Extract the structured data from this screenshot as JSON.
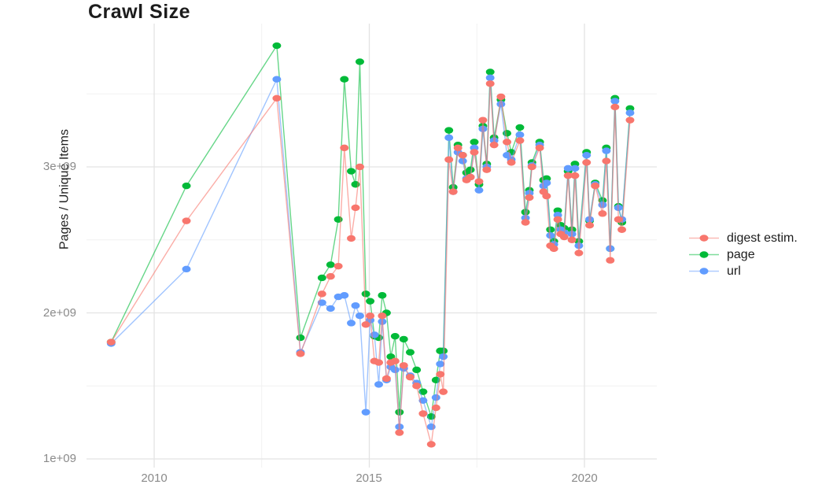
{
  "title": "Crawl Size",
  "axes": {
    "x": {
      "title": "",
      "tick_labels": [
        "2010",
        "2015",
        "2020"
      ]
    },
    "y": {
      "title": "Pages / Unique Items",
      "tick_labels": [
        "1e+09",
        "2e+09",
        "3e+09"
      ]
    }
  },
  "legend": {
    "position": "right",
    "items": [
      "digest estim.",
      "page",
      "url"
    ]
  },
  "colors": {
    "digest": "#F8766D",
    "page": "#00BA38",
    "url": "#619CFF",
    "grid_major": "#e3e3e3",
    "grid_minor": "#f1f1f1",
    "tick_text": "#8a8a8a",
    "text": "#1c1c1c"
  },
  "chart_data": {
    "type": "line",
    "title": "Crawl Size",
    "xlabel": "",
    "ylabel": "Pages / Unique Items",
    "legend_position": "right",
    "grid": true,
    "x_unit": "year (decimal)",
    "y_unit": "count (multiply by 1e9)",
    "xlim": [
      2008.4,
      2021.7
    ],
    "ylim": [
      0.93,
      3.98
    ],
    "x_ticks": {
      "major": [
        2010,
        2015,
        2020
      ],
      "minor": [
        2012.5,
        2017.5
      ],
      "labels": [
        "2010",
        "2015",
        "2020"
      ]
    },
    "y_ticks": {
      "major": [
        1,
        2,
        3
      ],
      "minor": [
        1.5,
        2.5,
        3.5
      ],
      "labels": [
        "1e+09",
        "2e+09",
        "3e+09"
      ]
    },
    "x": [
      2009.0,
      2010.75,
      2012.85,
      2013.4,
      2013.9,
      2014.1,
      2014.28,
      2014.42,
      2014.58,
      2014.68,
      2014.78,
      2014.92,
      2015.02,
      2015.12,
      2015.22,
      2015.3,
      2015.4,
      2015.5,
      2015.6,
      2015.7,
      2015.8,
      2015.95,
      2016.1,
      2016.25,
      2016.44,
      2016.55,
      2016.65,
      2016.72,
      2016.85,
      2016.95,
      2017.06,
      2017.17,
      2017.26,
      2017.35,
      2017.44,
      2017.55,
      2017.64,
      2017.73,
      2017.81,
      2017.9,
      2018.06,
      2018.2,
      2018.3,
      2018.5,
      2018.63,
      2018.72,
      2018.78,
      2018.96,
      2019.05,
      2019.12,
      2019.21,
      2019.29,
      2019.38,
      2019.45,
      2019.53,
      2019.62,
      2019.71,
      2019.78,
      2019.87,
      2020.05,
      2020.12,
      2020.25,
      2020.42,
      2020.51,
      2020.6,
      2020.71,
      2020.79,
      2020.87,
      2021.06
    ],
    "series": [
      {
        "name": "digest estim.",
        "color": "#F8766D",
        "values": [
          1.8,
          2.63,
          3.47,
          1.72,
          2.13,
          2.25,
          2.32,
          3.13,
          2.51,
          2.72,
          3.0,
          1.92,
          1.98,
          1.67,
          1.66,
          1.98,
          1.55,
          1.66,
          1.67,
          1.18,
          1.64,
          1.56,
          1.5,
          1.31,
          1.1,
          1.35,
          1.58,
          1.46,
          3.05,
          2.83,
          3.13,
          3.08,
          2.91,
          2.93,
          3.1,
          2.9,
          3.32,
          2.98,
          3.57,
          3.15,
          3.48,
          3.17,
          3.03,
          3.18,
          2.62,
          2.79,
          3.0,
          3.13,
          2.83,
          2.8,
          2.46,
          2.44,
          2.64,
          2.54,
          2.52,
          2.94,
          2.5,
          2.94,
          2.41,
          3.03,
          2.6,
          2.87,
          2.68,
          3.04,
          2.36,
          3.41,
          2.64,
          2.57,
          3.32
        ]
      },
      {
        "name": "page",
        "color": "#00BA38",
        "values": [
          1.8,
          2.87,
          3.83,
          1.83,
          2.24,
          2.33,
          2.64,
          3.6,
          2.97,
          2.88,
          3.72,
          2.13,
          2.08,
          1.84,
          1.83,
          2.12,
          2.0,
          1.7,
          1.84,
          1.32,
          1.82,
          1.73,
          1.61,
          1.46,
          1.29,
          1.54,
          1.74,
          1.74,
          3.25,
          2.86,
          3.15,
          3.08,
          2.96,
          2.98,
          3.17,
          2.88,
          3.28,
          3.02,
          3.65,
          3.2,
          3.46,
          3.23,
          3.1,
          3.27,
          2.69,
          2.84,
          3.03,
          3.17,
          2.91,
          2.92,
          2.57,
          2.49,
          2.7,
          2.6,
          2.58,
          2.97,
          2.57,
          3.02,
          2.49,
          3.1,
          2.63,
          2.89,
          2.77,
          3.13,
          2.44,
          3.47,
          2.73,
          2.62,
          3.4
        ]
      },
      {
        "name": "url",
        "color": "#619CFF",
        "values": [
          1.79,
          2.3,
          3.6,
          1.73,
          2.07,
          2.03,
          2.11,
          2.12,
          1.93,
          2.05,
          1.98,
          1.32,
          1.95,
          1.85,
          1.51,
          1.94,
          1.54,
          1.63,
          1.61,
          1.22,
          1.62,
          1.57,
          1.52,
          1.4,
          1.22,
          1.42,
          1.65,
          1.7,
          3.2,
          2.83,
          3.1,
          3.04,
          2.92,
          2.93,
          3.13,
          2.84,
          3.26,
          3.0,
          3.61,
          3.18,
          3.43,
          3.08,
          3.05,
          3.22,
          2.65,
          2.82,
          3.01,
          3.15,
          2.87,
          2.89,
          2.53,
          2.47,
          2.67,
          2.57,
          2.55,
          2.99,
          2.54,
          2.99,
          2.46,
          3.08,
          2.64,
          2.88,
          2.74,
          3.11,
          2.44,
          3.45,
          2.72,
          2.64,
          3.37
        ]
      }
    ]
  }
}
